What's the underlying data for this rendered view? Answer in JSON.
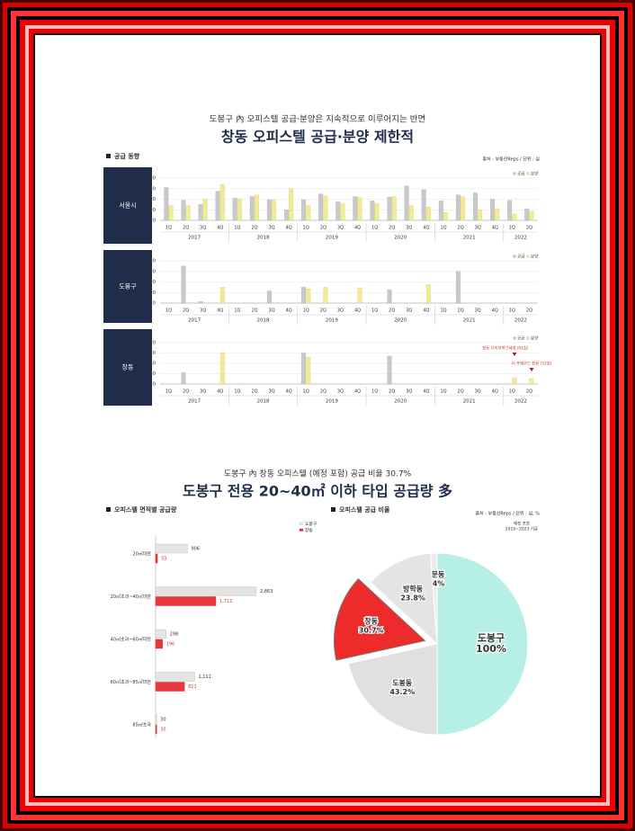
{
  "header": {
    "subtitle": "도봉구 內 오피스텔 공급·분양은 지속적으로 이루어지는 반면",
    "title": "창동 오피스텔 공급·분양 제한적"
  },
  "supply": {
    "label": "공급 동향",
    "source": "출처 : 부동산Reps / 단위 : 실"
  },
  "lower_header": {
    "subtitle": "도봉구 內 창동 오피스텔 (예정 포함) 공급 비율 30.7%",
    "title": "도봉구 전용 20~40㎡ 이하 타입 공급량 多"
  },
  "area_section": {
    "label": "오피스텔 면적별 공급량"
  },
  "ratio_section": {
    "label": "오피스텔 공급 비율",
    "source": "출처 : 부동산Reps / 단위 : 실, %",
    "note": [
      "예정 포함",
      "2010~2023 기준"
    ]
  },
  "chart_data": [
    {
      "type": "bar",
      "title": "서울시",
      "year_groups": [
        {
          "label": "2017",
          "quarters": [
            "1Q",
            "2Q",
            "3Q",
            "4Q"
          ]
        },
        {
          "label": "2018",
          "quarters": [
            "1Q",
            "2Q",
            "3Q",
            "4Q"
          ]
        },
        {
          "label": "2019",
          "quarters": [
            "1Q",
            "2Q",
            "3Q",
            "4Q"
          ]
        },
        {
          "label": "2020",
          "quarters": [
            "1Q",
            "2Q",
            "3Q",
            "4Q"
          ]
        },
        {
          "label": "2021",
          "quarters": [
            "1Q",
            "2Q",
            "3Q",
            "4Q"
          ]
        },
        {
          "label": "2022",
          "quarters": [
            "1Q",
            "2Q"
          ]
        }
      ],
      "series": [
        {
          "name": "공급",
          "color": "#c9c9c9",
          "values": [
            6200,
            3800,
            3000,
            5500,
            4200,
            4500,
            3900,
            2000,
            3900,
            5000,
            3500,
            4500,
            3700,
            4400,
            6500,
            5800,
            3700,
            4800,
            5200,
            4000,
            3800,
            2200
          ]
        },
        {
          "name": "분양",
          "color": "#f2ea94",
          "values": [
            2800,
            2800,
            4000,
            6800,
            4000,
            4800,
            3900,
            6000,
            2800,
            4600,
            3200,
            4300,
            3200,
            4500,
            2800,
            2500,
            1500,
            4500,
            2000,
            2200,
            1200,
            1700
          ]
        }
      ],
      "ylim": [
        0,
        8000
      ],
      "yticks": [
        0,
        {
          "value": 2000,
          "label": "2,000"
        },
        {
          "value": 4000,
          "label": "4,000"
        },
        {
          "value": 6000,
          "label": "6,000"
        },
        {
          "value": 8000,
          "label": "8,000"
        }
      ],
      "grid": true
    },
    {
      "type": "bar",
      "title": "도봉구",
      "year_groups": [
        {
          "label": "2017",
          "quarters": [
            "1Q",
            "2Q",
            "3Q",
            "4Q"
          ]
        },
        {
          "label": "2018",
          "quarters": [
            "1Q",
            "2Q",
            "3Q",
            "4Q"
          ]
        },
        {
          "label": "2019",
          "quarters": [
            "1Q",
            "2Q",
            "3Q",
            "4Q"
          ]
        },
        {
          "label": "2020",
          "quarters": [
            "1Q",
            "2Q",
            "3Q",
            "4Q"
          ]
        },
        {
          "label": "2021",
          "quarters": [
            "1Q",
            "2Q",
            "3Q",
            "4Q"
          ]
        },
        {
          "label": "2022",
          "quarters": [
            "1Q",
            "2Q"
          ]
        }
      ],
      "series": [
        {
          "name": "공급",
          "color": "#c9c9c9",
          "values": [
            0,
            700,
            30,
            0,
            0,
            0,
            230,
            0,
            300,
            0,
            0,
            0,
            0,
            250,
            0,
            0,
            0,
            600,
            0,
            0,
            0,
            0
          ]
        },
        {
          "name": "분양",
          "color": "#f2ea94",
          "values": [
            0,
            0,
            0,
            300,
            0,
            0,
            0,
            0,
            270,
            300,
            0,
            290,
            0,
            0,
            0,
            350,
            0,
            0,
            0,
            0,
            0,
            0
          ]
        }
      ],
      "ylim": [
        0,
        800
      ],
      "yticks": [
        0,
        200,
        400,
        600,
        800
      ],
      "grid": true
    },
    {
      "type": "bar",
      "title": "창동",
      "year_groups": [
        {
          "label": "2017",
          "quarters": [
            "1Q",
            "2Q",
            "3Q",
            "4Q"
          ]
        },
        {
          "label": "2018",
          "quarters": [
            "1Q",
            "2Q",
            "3Q",
            "4Q"
          ]
        },
        {
          "label": "2019",
          "quarters": [
            "1Q",
            "2Q",
            "3Q",
            "4Q"
          ]
        },
        {
          "label": "2020",
          "quarters": [
            "1Q",
            "2Q",
            "3Q",
            "4Q"
          ]
        },
        {
          "label": "2021",
          "quarters": [
            "1Q",
            "2Q",
            "3Q",
            "4Q"
          ]
        },
        {
          "label": "2022",
          "quarters": [
            "1Q",
            "2Q"
          ]
        }
      ],
      "series": [
        {
          "name": "공급",
          "color": "#c9c9c9",
          "values": [
            0,
            110,
            0,
            0,
            0,
            0,
            0,
            0,
            300,
            0,
            0,
            0,
            0,
            270,
            0,
            0,
            0,
            0,
            0,
            0,
            0,
            0
          ]
        },
        {
          "name": "분양",
          "color": "#f2ea94",
          "values": [
            0,
            0,
            0,
            300,
            5,
            0,
            0,
            0,
            260,
            0,
            0,
            0,
            0,
            0,
            0,
            0,
            0,
            0,
            0,
            0,
            61,
            52
          ]
        }
      ],
      "ylim": [
        0,
        400
      ],
      "yticks": [
        0,
        100,
        200,
        300,
        400
      ],
      "grid": true,
      "annotations": [
        "창동 다이아파크세계 (61실)",
        "더 포레우드 창동 (52실)"
      ]
    },
    {
      "type": "barh",
      "categories": [
        "20㎡미만",
        "20㎡초과~40㎡미만",
        "40㎡초과~60㎡미만",
        "60㎡초과~85㎡미만",
        "85㎡초과"
      ],
      "series": [
        {
          "name": "도봉구",
          "color": "#e4e4e4",
          "values": [
            906,
            2863,
            298,
            1111,
            30
          ],
          "value_labels": [
            "906",
            "2,863",
            "298",
            "1,111",
            "30"
          ]
        },
        {
          "name": "창동",
          "color": "#e8383d",
          "values": [
            53,
            1712,
            196,
            821,
            30
          ],
          "value_labels": [
            "53",
            "1,712",
            "196",
            "821",
            "30"
          ]
        }
      ]
    },
    {
      "type": "pie",
      "total": {
        "name": "도봉구",
        "value": 100,
        "value_label": "100%",
        "color": "#b6efe6"
      },
      "categories": [
        "쌍문동",
        "방학동",
        "창동",
        "도봉동"
      ],
      "values": [
        2.4,
        23.8,
        30.7,
        43.2
      ],
      "value_labels": [
        "2.4%",
        "23.8%",
        "30.7%",
        "43.2%"
      ],
      "colors": [
        "#ececec",
        "#e4e4e4",
        "#ee2b2b",
        "#e0e0e0"
      ],
      "explode": "창동"
    }
  ]
}
